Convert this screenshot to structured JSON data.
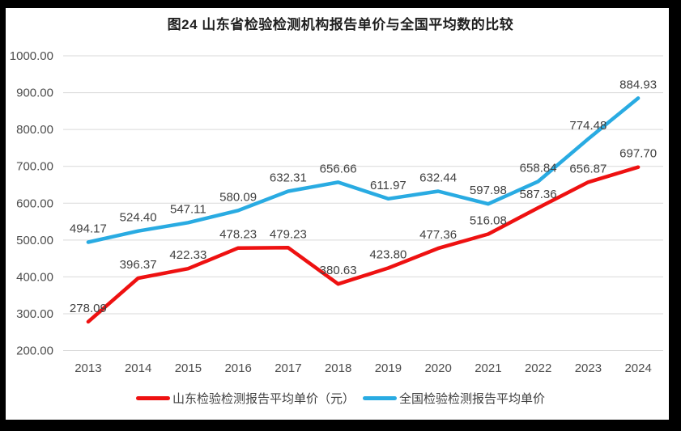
{
  "title": "图24  山东省检验检测机构报告单价与全国平均数的比较",
  "chart_data": {
    "type": "line",
    "categories": [
      "2013",
      "2014",
      "2015",
      "2016",
      "2017",
      "2018",
      "2019",
      "2020",
      "2021",
      "2022",
      "2023",
      "2024"
    ],
    "series": [
      {
        "name": "山东检验检测报告平均单价（元）",
        "color": "#ee1111",
        "values": [
          278.09,
          396.37,
          422.33,
          478.23,
          479.23,
          380.63,
          423.8,
          477.36,
          516.08,
          587.36,
          656.87,
          697.7
        ]
      },
      {
        "name": "全国检验检测报告平均单价",
        "color": "#29abe2",
        "values": [
          494.17,
          524.4,
          547.11,
          580.09,
          632.31,
          656.66,
          611.97,
          632.44,
          597.98,
          658.84,
          774.48,
          884.93
        ]
      }
    ],
    "title": "图24  山东省检验检测机构报告单价与全国平均数的比较",
    "xlabel": "",
    "ylabel": "",
    "ylim": [
      200,
      1000
    ],
    "ytick_step": 100,
    "ytick_decimals": 2,
    "data_label_decimals": 2,
    "grid": true,
    "legend_position": "bottom"
  },
  "colors": {
    "frame": "#000000",
    "background": "#ffffff",
    "gridline": "#d9d9d9",
    "tick_text": "#4d4d4d",
    "data_label_text": "#404040",
    "title_text": "#1f1f1f"
  }
}
